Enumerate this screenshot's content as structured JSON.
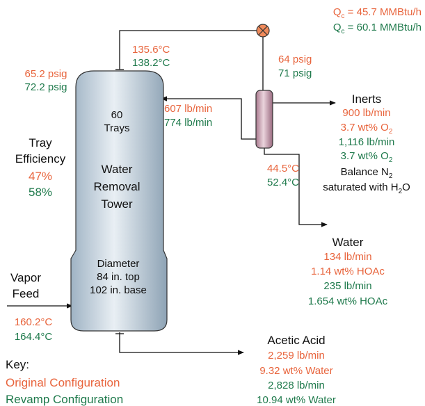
{
  "condenser": {
    "original": {
      "symbol": "Q",
      "sub": "c",
      "text": " = 45.7 MMBtu/h"
    },
    "revamp": {
      "symbol": "Q",
      "sub": "c",
      "text": " = 60.1 MMBtu/h"
    }
  },
  "overhead": {
    "temp_original": "135.6°C",
    "temp_revamp": "138.2°C",
    "pressure_original": "64 psig",
    "pressure_revamp": "71 psig"
  },
  "tower": {
    "top_pressure_original": "65.2 psig",
    "top_pressure_revamp": "72.2 psig",
    "trays_count": "60",
    "trays_label": "Trays",
    "name": [
      "Water",
      "Removal",
      "Tower"
    ],
    "diameter": [
      "Diameter",
      "84 in. top",
      "102 in. base"
    ]
  },
  "tray_efficiency": {
    "label": [
      "Tray",
      "Efficiency"
    ],
    "original": "47%",
    "revamp": "58%"
  },
  "reflux": {
    "original": "607 lb/min",
    "revamp": "774 lb/min"
  },
  "accumulator": {
    "temp_original": "44.5°C",
    "temp_revamp": "52.4°C"
  },
  "inerts": {
    "title": "Inerts",
    "original_flow": "900 lb/min",
    "original_o2": {
      "text": "3.7 wt% O",
      "sub": "2"
    },
    "revamp_flow": "1,116 lb/min",
    "revamp_o2": {
      "text": "3.7 wt% O",
      "sub": "2"
    },
    "balance": {
      "text": "Balance N",
      "sub": "2"
    },
    "saturated": {
      "text": "saturated with H",
      "sub": "2",
      "after": "O"
    }
  },
  "water": {
    "title": "Water",
    "original_flow": "134 lb/min",
    "original_conc": "1.14 wt% HOAc",
    "revamp_flow": "235 lb/min",
    "revamp_conc": "1.654 wt% HOAc"
  },
  "vapor_feed": {
    "label": [
      "Vapor",
      "Feed"
    ],
    "temp_original": "160.2°C",
    "temp_revamp": "164.4°C"
  },
  "acetic_acid": {
    "title": "Acetic Acid",
    "original_flow": "2,259 lb/min",
    "original_conc": "9.32 wt% Water",
    "revamp_flow": "2,828 lb/min",
    "revamp_conc": "10.94 wt% Water"
  },
  "key": {
    "title": "Key:",
    "original": "Original Configuration",
    "revamp": "Revamp Configuration"
  }
}
